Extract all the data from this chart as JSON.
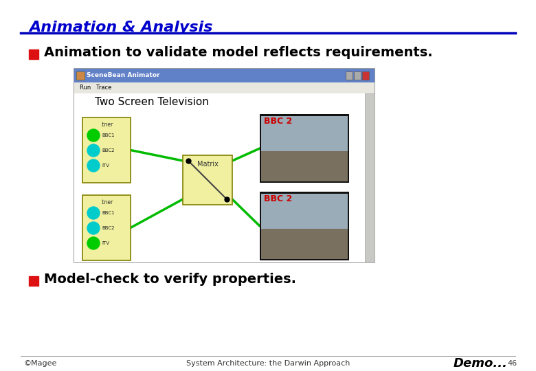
{
  "title": "Animation & Analysis",
  "title_color": "#0000cc",
  "title_fontsize": 16,
  "separator_color": "#0000bb",
  "bg_color": "#ffffff",
  "bullet_color": "#dd1111",
  "bullet1_text": "Animation to validate model reflects requirements.",
  "bullet2_text": "Model-check to verify properties.",
  "bullet_fontsize": 14,
  "footer_left": "©Magee",
  "footer_center": "System Architecture: the Darwin Approach",
  "footer_right": "Demo...",
  "footer_page": "46",
  "footer_fontsize": 8,
  "demo_fontsize": 13
}
